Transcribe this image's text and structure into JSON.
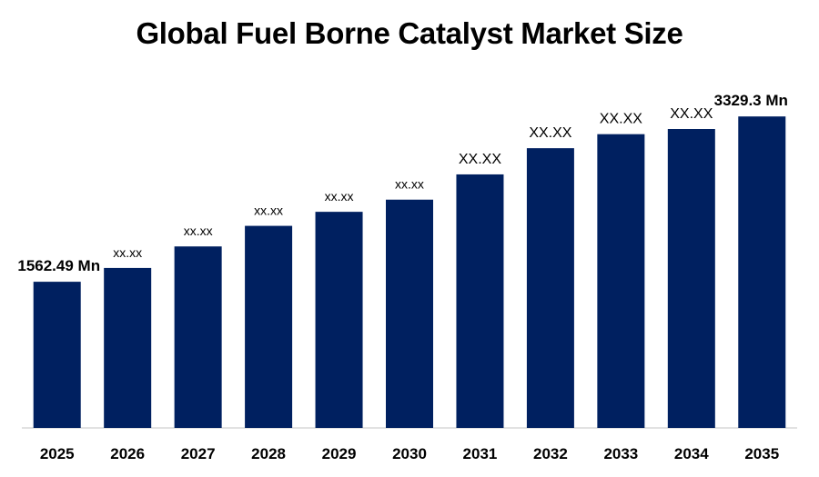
{
  "chart_data": {
    "type": "bar",
    "title": "Global Fuel Borne Catalyst Market Size",
    "categories": [
      "2025",
      "2026",
      "2027",
      "2028",
      "2029",
      "2030",
      "2031",
      "2032",
      "2033",
      "2034",
      "2035"
    ],
    "values": [
      1562.49,
      1710,
      1940,
      2160,
      2310,
      2440,
      2710,
      2990,
      3140,
      3195,
      3329.3
    ],
    "value_labels": [
      "1562.49 Mn",
      "xx.xx",
      "xx.xx",
      "xx.xx",
      "xx.xx",
      "xx.xx",
      "XX.XX",
      "XX.XX",
      "XX.XX",
      "XX.XX",
      "3329.3 Mn"
    ],
    "bar_color": "#002060",
    "ylim": [
      0,
      3700
    ],
    "grid": false,
    "legend": "none"
  }
}
